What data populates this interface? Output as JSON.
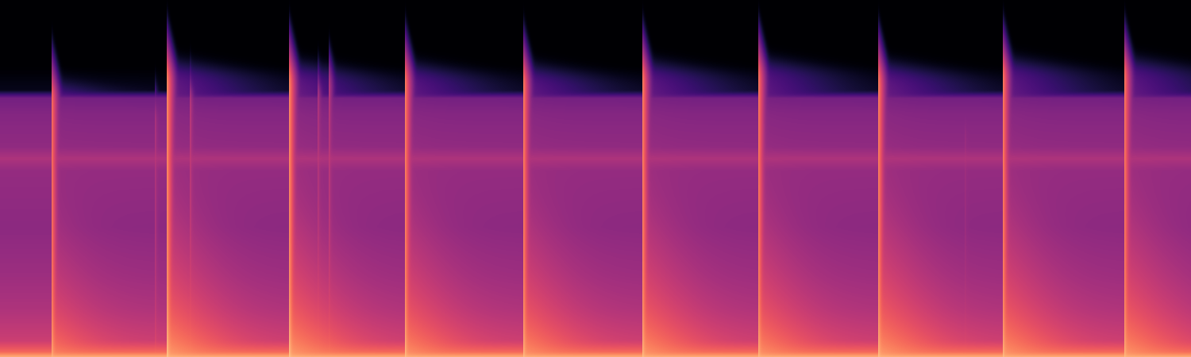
{
  "chart_data": {
    "type": "spectrogram",
    "tick_labels": false,
    "color": "magma",
    "xlim": [
      0,
      15
    ],
    "ylim": [
      0,
      22.05
    ],
    "zlim": [
      -100,
      0
    ],
    "background": {
      "freq": [
        0,
        0.3,
        1,
        3,
        5,
        8,
        11.5,
        12.25,
        13,
        15,
        16,
        16.5,
        18,
        22.05
      ],
      "level": [
        -18,
        -32,
        -45,
        -52,
        -56,
        -60,
        -58,
        -52,
        -59,
        -62,
        -66,
        -95,
        -100,
        -100
      ]
    },
    "clicks": {
      "x": [
        0.65,
        2.1,
        3.64,
        5.1,
        6.59,
        8.09,
        9.55,
        11.06,
        12.63,
        14.16
      ],
      "top": [
        16.3,
        17.4,
        17.3,
        17.3,
        17.2,
        17.4,
        17.6,
        17.3,
        17.6,
        17.6
      ],
      "level": [
        -30,
        -24,
        -24,
        -26,
        -26,
        -25,
        -26,
        -24,
        -25,
        -25
      ]
    },
    "faint_clicks": {
      "x": [
        1.95,
        2.39,
        4.0,
        4.14,
        12.15
      ],
      "top": [
        15.0,
        16.0,
        16.3,
        17.1,
        14.0
      ],
      "level": [
        -52,
        -48,
        -50,
        -48,
        -56
      ]
    }
  }
}
